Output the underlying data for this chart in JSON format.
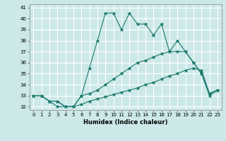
{
  "title": "",
  "xlabel": "Humidex (Indice chaleur)",
  "background_color": "#cce8e8",
  "grid_color": "#ffffff",
  "line_color": "#1a7a6e",
  "x_values": [
    0,
    1,
    2,
    3,
    4,
    5,
    6,
    7,
    8,
    9,
    10,
    11,
    12,
    13,
    14,
    15,
    16,
    17,
    18,
    19,
    20,
    21,
    22,
    23
  ],
  "line1": [
    33,
    33,
    32.5,
    32,
    32,
    32,
    33,
    35.5,
    38,
    40.5,
    40.5,
    39,
    40.5,
    39.5,
    39.5,
    38.5,
    39.5,
    37,
    38,
    37,
    36,
    35,
    33,
    33.5
  ],
  "line2": [
    33,
    33,
    32.5,
    32.5,
    32,
    32,
    33,
    33.2,
    33.5,
    34,
    34.5,
    35,
    35.5,
    36,
    36.2,
    36.5,
    36.8,
    37,
    37,
    37,
    36,
    35,
    33.2,
    33.5
  ],
  "line3": [
    33,
    33,
    32.5,
    32.5,
    32,
    32,
    32.2,
    32.5,
    32.7,
    32.9,
    33.1,
    33.3,
    33.5,
    33.7,
    34,
    34.2,
    34.5,
    34.8,
    35,
    35.3,
    35.5,
    35.3,
    33.2,
    33.5
  ],
  "ylim": [
    31.7,
    41.3
  ],
  "xlim": [
    -0.5,
    23.5
  ],
  "yticks": [
    32,
    33,
    34,
    35,
    36,
    37,
    38,
    39,
    40,
    41
  ],
  "xticks": [
    0,
    1,
    2,
    3,
    4,
    5,
    6,
    7,
    8,
    9,
    10,
    11,
    12,
    13,
    14,
    15,
    16,
    17,
    18,
    19,
    20,
    21,
    22,
    23
  ]
}
